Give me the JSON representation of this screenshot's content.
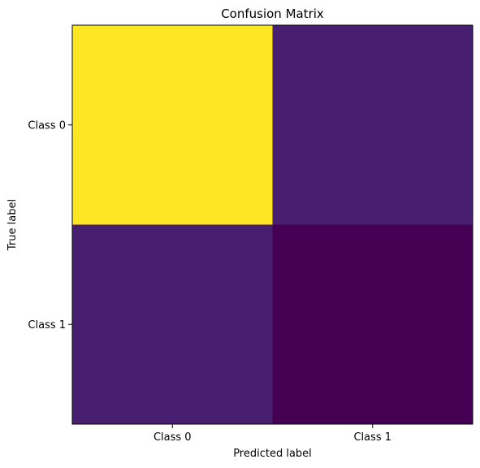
{
  "chart_data": {
    "type": "heatmap",
    "title": "Confusion Matrix",
    "xlabel": "Predicted label",
    "ylabel": "True label",
    "x_categories": [
      "Class 0",
      "Class 1"
    ],
    "y_categories": [
      "Class 0",
      "Class 1"
    ],
    "values": [
      [
        1.0,
        0.12
      ],
      [
        0.12,
        0.0
      ]
    ],
    "colormap": "viridis",
    "colors": {
      "high": "#fde725",
      "mid_low": "#481f70",
      "low": "#440154"
    }
  }
}
